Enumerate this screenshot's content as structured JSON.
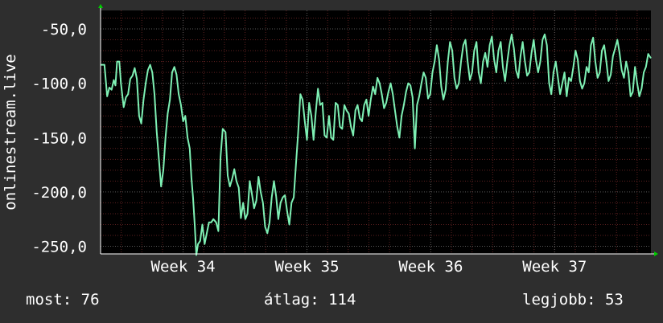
{
  "chart_data": {
    "type": "line",
    "ylabel": "onlinestream.live",
    "ylim": [
      -257,
      -33
    ],
    "y_ticks": [
      -50,
      -100,
      -150,
      -200,
      -250
    ],
    "y_tick_labels": [
      "-50,0",
      "-100,0",
      "-150,0",
      "-200,0",
      "-250,0"
    ],
    "x_range": [
      0,
      1000
    ],
    "x_ticks": [
      150,
      375,
      600,
      825
    ],
    "x_tick_labels": [
      "Week 34",
      "Week 35",
      "Week 36",
      "Week 37"
    ],
    "grid": true,
    "colors": {
      "background": "#2e2e2e",
      "plot": "#000000",
      "grid_major": "#5a5a5a",
      "grid_minor": "#5e2020",
      "line": "#7ef0b4",
      "arrow": "#00cc00"
    },
    "series": [
      {
        "values": [
          [
            0,
            -83
          ],
          [
            7,
            -83
          ],
          [
            12,
            -112
          ],
          [
            16,
            -104
          ],
          [
            20,
            -106
          ],
          [
            24,
            -97
          ],
          [
            27,
            -102
          ],
          [
            30,
            -80
          ],
          [
            34,
            -80
          ],
          [
            37,
            -100
          ],
          [
            42,
            -122
          ],
          [
            46,
            -113
          ],
          [
            50,
            -110
          ],
          [
            54,
            -96
          ],
          [
            58,
            -93
          ],
          [
            62,
            -86
          ],
          [
            66,
            -96
          ],
          [
            70,
            -130
          ],
          [
            74,
            -137
          ],
          [
            78,
            -115
          ],
          [
            82,
            -100
          ],
          [
            86,
            -88
          ],
          [
            90,
            -83
          ],
          [
            94,
            -90
          ],
          [
            98,
            -110
          ],
          [
            102,
            -145
          ],
          [
            106,
            -170
          ],
          [
            110,
            -195
          ],
          [
            114,
            -180
          ],
          [
            118,
            -150
          ],
          [
            122,
            -128
          ],
          [
            126,
            -115
          ],
          [
            130,
            -90
          ],
          [
            134,
            -85
          ],
          [
            138,
            -92
          ],
          [
            142,
            -110
          ],
          [
            146,
            -120
          ],
          [
            150,
            -135
          ],
          [
            154,
            -130
          ],
          [
            158,
            -150
          ],
          [
            162,
            -160
          ],
          [
            165,
            -187
          ],
          [
            168,
            -205
          ],
          [
            171,
            -230
          ],
          [
            174,
            -258
          ],
          [
            177,
            -248
          ],
          [
            181,
            -245
          ],
          [
            185,
            -230
          ],
          [
            189,
            -248
          ],
          [
            193,
            -238
          ],
          [
            197,
            -228
          ],
          [
            201,
            -228
          ],
          [
            205,
            -225
          ],
          [
            210,
            -228
          ],
          [
            214,
            -236
          ],
          [
            218,
            -168
          ],
          [
            222,
            -142
          ],
          [
            227,
            -145
          ],
          [
            231,
            -185
          ],
          [
            235,
            -195
          ],
          [
            239,
            -188
          ],
          [
            243,
            -179
          ],
          [
            247,
            -190
          ],
          [
            251,
            -196
          ],
          [
            255,
            -224
          ],
          [
            259,
            -210
          ],
          [
            263,
            -225
          ],
          [
            267,
            -220
          ],
          [
            271,
            -190
          ],
          [
            275,
            -202
          ],
          [
            279,
            -215
          ],
          [
            283,
            -208
          ],
          [
            287,
            -186
          ],
          [
            291,
            -200
          ],
          [
            295,
            -210
          ],
          [
            299,
            -232
          ],
          [
            303,
            -238
          ],
          [
            307,
            -228
          ],
          [
            311,
            -205
          ],
          [
            315,
            -190
          ],
          [
            319,
            -204
          ],
          [
            323,
            -225
          ],
          [
            327,
            -210
          ],
          [
            331,
            -205
          ],
          [
            335,
            -203
          ],
          [
            339,
            -218
          ],
          [
            343,
            -230
          ],
          [
            347,
            -210
          ],
          [
            351,
            -205
          ],
          [
            355,
            -175
          ],
          [
            359,
            -145
          ],
          [
            363,
            -110
          ],
          [
            367,
            -115
          ],
          [
            371,
            -135
          ],
          [
            375,
            -152
          ],
          [
            379,
            -118
          ],
          [
            383,
            -130
          ],
          [
            387,
            -152
          ],
          [
            391,
            -127
          ],
          [
            395,
            -105
          ],
          [
            399,
            -120
          ],
          [
            403,
            -118
          ],
          [
            407,
            -148
          ],
          [
            411,
            -150
          ],
          [
            415,
            -130
          ],
          [
            419,
            -150
          ],
          [
            423,
            -152
          ],
          [
            427,
            -118
          ],
          [
            431,
            -120
          ],
          [
            435,
            -140
          ],
          [
            439,
            -142
          ],
          [
            443,
            -120
          ],
          [
            447,
            -125
          ],
          [
            451,
            -128
          ],
          [
            455,
            -140
          ],
          [
            459,
            -148
          ],
          [
            463,
            -125
          ],
          [
            467,
            -120
          ],
          [
            471,
            -132
          ],
          [
            475,
            -135
          ],
          [
            479,
            -120
          ],
          [
            483,
            -115
          ],
          [
            487,
            -130
          ],
          [
            491,
            -115
          ],
          [
            495,
            -103
          ],
          [
            499,
            -110
          ],
          [
            503,
            -95
          ],
          [
            507,
            -100
          ],
          [
            511,
            -110
          ],
          [
            515,
            -123
          ],
          [
            519,
            -118
          ],
          [
            523,
            -108
          ],
          [
            527,
            -100
          ],
          [
            531,
            -110
          ],
          [
            535,
            -125
          ],
          [
            539,
            -140
          ],
          [
            543,
            -150
          ],
          [
            547,
            -130
          ],
          [
            551,
            -120
          ],
          [
            555,
            -108
          ],
          [
            559,
            -100
          ],
          [
            563,
            -102
          ],
          [
            567,
            -113
          ],
          [
            571,
            -160
          ],
          [
            575,
            -120
          ],
          [
            579,
            -112
          ],
          [
            583,
            -100
          ],
          [
            587,
            -90
          ],
          [
            591,
            -95
          ],
          [
            595,
            -114
          ],
          [
            599,
            -110
          ],
          [
            603,
            -90
          ],
          [
            607,
            -80
          ],
          [
            611,
            -65
          ],
          [
            615,
            -78
          ],
          [
            619,
            -103
          ],
          [
            623,
            -115
          ],
          [
            627,
            -106
          ],
          [
            631,
            -80
          ],
          [
            635,
            -62
          ],
          [
            639,
            -70
          ],
          [
            643,
            -95
          ],
          [
            647,
            -105
          ],
          [
            651,
            -100
          ],
          [
            655,
            -80
          ],
          [
            659,
            -65
          ],
          [
            663,
            -60
          ],
          [
            667,
            -80
          ],
          [
            671,
            -97
          ],
          [
            675,
            -90
          ],
          [
            679,
            -70
          ],
          [
            683,
            -62
          ],
          [
            687,
            -90
          ],
          [
            691,
            -100
          ],
          [
            695,
            -80
          ],
          [
            699,
            -72
          ],
          [
            703,
            -85
          ],
          [
            707,
            -65
          ],
          [
            711,
            -57
          ],
          [
            715,
            -78
          ],
          [
            719,
            -90
          ],
          [
            723,
            -70
          ],
          [
            727,
            -62
          ],
          [
            731,
            -85
          ],
          [
            735,
            -98
          ],
          [
            739,
            -80
          ],
          [
            743,
            -65
          ],
          [
            747,
            -55
          ],
          [
            751,
            -68
          ],
          [
            755,
            -88
          ],
          [
            759,
            -95
          ],
          [
            763,
            -75
          ],
          [
            767,
            -62
          ],
          [
            771,
            -80
          ],
          [
            775,
            -93
          ],
          [
            779,
            -90
          ],
          [
            783,
            -72
          ],
          [
            787,
            -60
          ],
          [
            791,
            -78
          ],
          [
            795,
            -90
          ],
          [
            799,
            -80
          ],
          [
            803,
            -60
          ],
          [
            807,
            -55
          ],
          [
            811,
            -65
          ],
          [
            815,
            -100
          ],
          [
            819,
            -110
          ],
          [
            823,
            -90
          ],
          [
            827,
            -80
          ],
          [
            831,
            -95
          ],
          [
            835,
            -110
          ],
          [
            839,
            -100
          ],
          [
            843,
            -90
          ],
          [
            847,
            -112
          ],
          [
            851,
            -95
          ],
          [
            855,
            -98
          ],
          [
            859,
            -85
          ],
          [
            863,
            -70
          ],
          [
            867,
            -78
          ],
          [
            871,
            -98
          ],
          [
            875,
            -105
          ],
          [
            879,
            -100
          ],
          [
            883,
            -85
          ],
          [
            887,
            -90
          ],
          [
            891,
            -65
          ],
          [
            895,
            -58
          ],
          [
            899,
            -80
          ],
          [
            903,
            -95
          ],
          [
            907,
            -90
          ],
          [
            911,
            -70
          ],
          [
            915,
            -65
          ],
          [
            919,
            -80
          ],
          [
            923,
            -98
          ],
          [
            927,
            -92
          ],
          [
            931,
            -75
          ],
          [
            935,
            -68
          ],
          [
            939,
            -60
          ],
          [
            943,
            -72
          ],
          [
            947,
            -88
          ],
          [
            951,
            -95
          ],
          [
            955,
            -80
          ],
          [
            959,
            -90
          ],
          [
            963,
            -112
          ],
          [
            967,
            -108
          ],
          [
            971,
            -85
          ],
          [
            975,
            -100
          ],
          [
            979,
            -112
          ],
          [
            983,
            -105
          ],
          [
            987,
            -90
          ],
          [
            991,
            -85
          ],
          [
            995,
            -73
          ],
          [
            1000,
            -77
          ]
        ]
      }
    ]
  },
  "footer": {
    "now": "most: 76",
    "avg": "átlag: 114",
    "best": "legjobb: 53"
  }
}
